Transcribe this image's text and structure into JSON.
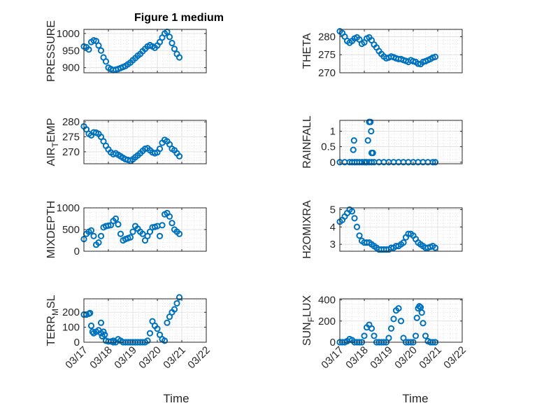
{
  "title": "Figure 1 medium",
  "xlabel": "Time",
  "x_tick_labels": [
    "03/17",
    "03/18",
    "03/19",
    "03/20",
    "03/21",
    "03/22"
  ],
  "marker_color": "#0072BD",
  "chart_data": [
    {
      "type": "scatter",
      "ylabel": "PRESSURE",
      "ylabel_base": "PRESSURE",
      "ylabel_sub": "",
      "ylabel_rest": "",
      "yticks": [
        900,
        950,
        1000
      ],
      "ylim": [
        885,
        1012
      ],
      "x": [
        17.0,
        17.1,
        17.2,
        17.3,
        17.4,
        17.5,
        17.6,
        17.7,
        17.8,
        17.9,
        18.0,
        18.1,
        18.2,
        18.3,
        18.4,
        18.5,
        18.6,
        18.7,
        18.8,
        18.9,
        19.0,
        19.1,
        19.2,
        19.3,
        19.4,
        19.5,
        19.6,
        19.7,
        19.8,
        19.9,
        20.0,
        20.1,
        20.2,
        20.3,
        20.4,
        20.5,
        20.6,
        20.7,
        20.8,
        20.9
      ],
      "y": [
        962,
        960,
        953,
        975,
        980,
        978,
        965,
        950,
        930,
        918,
        900,
        896,
        893,
        894,
        896,
        899,
        902,
        905,
        910,
        915,
        922,
        928,
        935,
        940,
        948,
        955,
        962,
        966,
        962,
        958,
        965,
        975,
        988,
        1000,
        1005,
        990,
        972,
        955,
        940,
        930
      ]
    },
    {
      "type": "scatter",
      "ylabel": "THETA",
      "ylabel_base": "THETA",
      "ylabel_sub": "",
      "ylabel_rest": "",
      "yticks": [
        270,
        275,
        280
      ],
      "ylim": [
        270,
        282
      ],
      "x": [
        17.0,
        17.1,
        17.2,
        17.3,
        17.4,
        17.5,
        17.6,
        17.7,
        17.8,
        17.9,
        18.0,
        18.1,
        18.2,
        18.3,
        18.4,
        18.5,
        18.6,
        18.7,
        18.8,
        18.9,
        19.0,
        19.1,
        19.2,
        19.3,
        19.4,
        19.5,
        19.6,
        19.7,
        19.8,
        19.9,
        20.0,
        20.1,
        20.2,
        20.3,
        20.4,
        20.5,
        20.6,
        20.7,
        20.8,
        20.9
      ],
      "y": [
        281.5,
        281.0,
        280.0,
        278.8,
        278.3,
        278.8,
        279.5,
        279.8,
        279.2,
        278.0,
        278.4,
        279.5,
        279.8,
        279.0,
        277.8,
        277.0,
        276.0,
        275.2,
        274.5,
        274.0,
        274.2,
        274.5,
        274.3,
        274.0,
        273.8,
        273.8,
        273.5,
        273.3,
        273.0,
        273.5,
        273.2,
        273.0,
        272.5,
        272.4,
        273.0,
        273.2,
        273.5,
        273.8,
        274.2,
        274.4
      ]
    },
    {
      "type": "scatter",
      "ylabel": "AIR_TEMP",
      "ylabel_base": "AIR",
      "ylabel_sub": "T",
      "ylabel_rest": "EMP",
      "yticks": [
        270,
        275,
        280
      ],
      "ylim": [
        266,
        280.5
      ],
      "x": [
        17.0,
        17.1,
        17.2,
        17.3,
        17.4,
        17.5,
        17.6,
        17.7,
        17.8,
        17.9,
        18.0,
        18.1,
        18.2,
        18.3,
        18.4,
        18.5,
        18.6,
        18.7,
        18.8,
        18.9,
        19.0,
        19.1,
        19.2,
        19.3,
        19.4,
        19.5,
        19.6,
        19.7,
        19.8,
        19.9,
        20.0,
        20.1,
        20.2,
        20.3,
        20.4,
        20.5,
        20.6,
        20.7,
        20.8,
        20.9
      ],
      "y": [
        278.5,
        277.5,
        276.0,
        275.5,
        276.5,
        276.4,
        276.0,
        275.0,
        273.5,
        272.0,
        270.8,
        269.8,
        269.2,
        269.5,
        269.0,
        268.5,
        268.0,
        267.5,
        267.3,
        267.0,
        267.5,
        268.2,
        268.8,
        269.5,
        270.3,
        271.0,
        271.2,
        270.5,
        269.8,
        269.5,
        269.8,
        271.0,
        273.0,
        274.0,
        273.5,
        272.5,
        271.0,
        270.5,
        269.5,
        268.5
      ]
    },
    {
      "type": "scatter",
      "ylabel": "RAINFALL",
      "ylabel_base": "RAINFALL",
      "ylabel_sub": "",
      "ylabel_rest": "",
      "yticks": [
        0,
        0.5,
        1
      ],
      "yticklabels": [
        "0",
        "0.5",
        "1"
      ],
      "ylim": [
        -0.05,
        1.35
      ],
      "x": [
        17.0,
        17.2,
        17.4,
        17.5,
        17.6,
        17.7,
        17.8,
        17.9,
        18.0,
        18.05,
        18.1,
        18.2,
        18.3,
        18.4,
        18.6,
        18.8,
        19.0,
        19.2,
        19.4,
        19.6,
        19.8,
        20.0,
        20.2,
        20.4,
        20.6,
        20.8,
        20.9,
        17.55,
        17.58,
        18.15,
        18.2,
        18.25,
        18.28,
        18.3,
        18.35
      ],
      "y": [
        0,
        0,
        0,
        0,
        0,
        0,
        0,
        0,
        0,
        0,
        0,
        0,
        0,
        0,
        0,
        0,
        0,
        0,
        0,
        0,
        0,
        0,
        0,
        0,
        0,
        0,
        0,
        0.4,
        0.7,
        0.7,
        1.3,
        1.3,
        1.0,
        0.3,
        0.3
      ]
    },
    {
      "type": "scatter",
      "ylabel": "MIXDEPTH",
      "ylabel_base": "MIXDEPTH",
      "ylabel_sub": "",
      "ylabel_rest": "",
      "yticks": [
        0,
        500,
        1000
      ],
      "ylim": [
        0,
        1000
      ],
      "x": [
        17.0,
        17.1,
        17.2,
        17.3,
        17.4,
        17.5,
        17.6,
        17.7,
        17.8,
        17.9,
        18.0,
        18.1,
        18.2,
        18.3,
        18.4,
        18.5,
        18.6,
        18.7,
        18.8,
        18.9,
        19.0,
        19.1,
        19.2,
        19.3,
        19.4,
        19.5,
        19.6,
        19.7,
        19.8,
        19.9,
        20.0,
        20.1,
        20.2,
        20.3,
        20.4,
        20.5,
        20.6,
        20.7,
        20.8,
        20.9
      ],
      "y": [
        280,
        400,
        450,
        480,
        350,
        150,
        200,
        350,
        550,
        580,
        590,
        600,
        700,
        750,
        620,
        400,
        250,
        280,
        300,
        320,
        450,
        580,
        520,
        450,
        400,
        250,
        350,
        450,
        550,
        560,
        580,
        350,
        600,
        850,
        880,
        800,
        650,
        500,
        450,
        400
      ]
    },
    {
      "type": "scatter",
      "ylabel": "H2OMIXRA",
      "ylabel_base": "H2OMIXRA",
      "ylabel_sub": "",
      "ylabel_rest": "",
      "yticks": [
        3,
        4,
        5
      ],
      "ylim": [
        2.6,
        5.1
      ],
      "x": [
        17.0,
        17.1,
        17.2,
        17.3,
        17.4,
        17.5,
        17.6,
        17.7,
        17.8,
        17.9,
        18.0,
        18.1,
        18.2,
        18.3,
        18.4,
        18.5,
        18.6,
        18.7,
        18.8,
        18.9,
        19.0,
        19.1,
        19.2,
        19.3,
        19.4,
        19.5,
        19.6,
        19.7,
        19.8,
        19.9,
        20.0,
        20.1,
        20.2,
        20.3,
        20.4,
        20.5,
        20.6,
        20.7,
        20.8,
        20.9
      ],
      "y": [
        4.3,
        4.4,
        4.6,
        4.8,
        5.0,
        4.9,
        4.5,
        4.0,
        3.5,
        3.2,
        3.1,
        3.1,
        3.1,
        3.0,
        2.9,
        2.8,
        2.7,
        2.7,
        2.7,
        2.7,
        2.7,
        2.8,
        2.8,
        2.9,
        2.9,
        3.0,
        3.1,
        3.4,
        3.6,
        3.6,
        3.5,
        3.3,
        3.1,
        3.0,
        2.9,
        2.8,
        2.8,
        2.85,
        2.9,
        2.8
      ]
    },
    {
      "type": "scatter",
      "ylabel": "TERR_MSL",
      "ylabel_base": "TERR",
      "ylabel_sub": "M",
      "ylabel_rest": "SL",
      "yticks": [
        0,
        100,
        200
      ],
      "ylim": [
        0,
        290
      ],
      "x": [
        17.0,
        17.1,
        17.2,
        17.25,
        17.3,
        17.35,
        17.4,
        17.5,
        17.6,
        17.7,
        17.75,
        17.8,
        17.85,
        17.9,
        18.0,
        18.1,
        18.2,
        18.3,
        18.4,
        18.5,
        18.6,
        18.7,
        18.8,
        18.9,
        19.0,
        19.1,
        19.2,
        19.3,
        19.4,
        19.5,
        19.6,
        19.7,
        19.8,
        19.9,
        20.0,
        20.1,
        20.2,
        20.3,
        20.4,
        20.5,
        20.6,
        20.7,
        20.8,
        20.9,
        17.7,
        18.2
      ],
      "y": [
        185,
        185,
        190,
        195,
        110,
        70,
        60,
        70,
        80,
        60,
        40,
        70,
        50,
        10,
        5,
        5,
        0,
        0,
        20,
        10,
        0,
        0,
        0,
        0,
        0,
        0,
        0,
        0,
        0,
        0,
        10,
        60,
        140,
        110,
        90,
        50,
        20,
        10,
        130,
        170,
        200,
        220,
        260,
        300,
        130,
        10
      ]
    },
    {
      "type": "scatter",
      "ylabel": "SUN_FLUX",
      "ylabel_base": "SUN",
      "ylabel_sub": "F",
      "ylabel_rest": "LUX",
      "yticks": [
        0,
        200,
        400
      ],
      "ylim": [
        0,
        410
      ],
      "x": [
        17.0,
        17.1,
        17.2,
        17.3,
        17.4,
        17.5,
        17.6,
        17.7,
        17.8,
        17.9,
        18.0,
        18.1,
        18.2,
        18.3,
        18.4,
        18.5,
        18.6,
        18.7,
        18.8,
        18.9,
        19.0,
        19.1,
        19.2,
        19.3,
        19.4,
        19.5,
        19.6,
        19.7,
        19.8,
        19.9,
        20.0,
        20.1,
        20.15,
        20.2,
        20.25,
        20.3,
        20.35,
        20.4,
        20.5,
        20.6,
        20.7,
        20.8,
        20.9
      ],
      "y": [
        0,
        0,
        0,
        10,
        30,
        20,
        0,
        0,
        0,
        0,
        60,
        140,
        165,
        130,
        60,
        0,
        0,
        0,
        0,
        0,
        40,
        130,
        220,
        300,
        320,
        200,
        40,
        0,
        0,
        0,
        0,
        60,
        230,
        320,
        340,
        330,
        280,
        180,
        60,
        10,
        0,
        0,
        0
      ]
    }
  ]
}
